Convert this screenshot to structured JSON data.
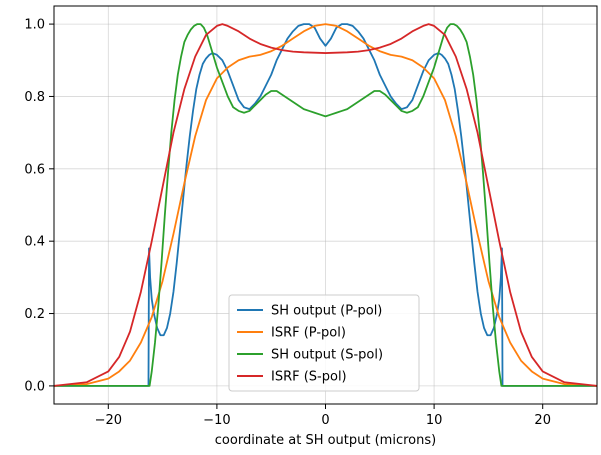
{
  "chart_data": {
    "type": "line",
    "title": "",
    "xlabel": "coordinate at SH output (microns)",
    "ylabel": "",
    "xlim": [
      -25,
      25
    ],
    "ylim": [
      -0.05,
      1.05
    ],
    "xticks": [
      -20,
      -10,
      0,
      10,
      20
    ],
    "yticks": [
      0.0,
      0.2,
      0.4,
      0.6,
      0.8,
      1.0
    ],
    "xtick_labels": [
      "−20",
      "−10",
      "0",
      "10",
      "20"
    ],
    "ytick_labels": [
      "0.0",
      "0.2",
      "0.4",
      "0.6",
      "0.8",
      "1.0"
    ],
    "grid": true,
    "legend_position": "lower-center",
    "series": [
      {
        "name": "SH output (P-pol)",
        "color": "#1f77b4",
        "x": [
          -25,
          -16.3,
          -16.25,
          -16.15,
          -16.0,
          -15.8,
          -15.5,
          -15.2,
          -14.9,
          -14.6,
          -14.3,
          -14.0,
          -13.7,
          -13.4,
          -13.1,
          -12.8,
          -12.5,
          -12.2,
          -11.9,
          -11.6,
          -11.3,
          -11.0,
          -10.7,
          -10.4,
          -10.0,
          -9.5,
          -9.0,
          -8.5,
          -8.0,
          -7.5,
          -7.0,
          -6.5,
          -6.0,
          -5.5,
          -5.0,
          -4.5,
          -4.0,
          -3.5,
          -3.0,
          -2.5,
          -2.0,
          -1.5,
          -1.0,
          -0.5,
          0.0,
          0.5,
          1.0,
          1.5,
          2.0,
          2.5,
          3.0,
          3.5,
          4.0,
          4.5,
          5.0,
          5.5,
          6.0,
          6.5,
          7.0,
          7.5,
          8.0,
          8.5,
          9.0,
          9.5,
          10.0,
          10.4,
          10.7,
          11.0,
          11.3,
          11.6,
          11.9,
          12.2,
          12.5,
          12.8,
          13.1,
          13.4,
          13.7,
          14.0,
          14.3,
          14.6,
          14.9,
          15.2,
          15.5,
          15.8,
          16.0,
          16.15,
          16.25,
          16.3,
          25
        ],
        "y": [
          0.0,
          0.0,
          0.38,
          0.3,
          0.24,
          0.2,
          0.16,
          0.14,
          0.14,
          0.16,
          0.2,
          0.26,
          0.34,
          0.43,
          0.52,
          0.61,
          0.69,
          0.76,
          0.82,
          0.86,
          0.89,
          0.905,
          0.915,
          0.92,
          0.915,
          0.9,
          0.87,
          0.83,
          0.79,
          0.77,
          0.765,
          0.78,
          0.8,
          0.83,
          0.86,
          0.9,
          0.93,
          0.96,
          0.98,
          0.995,
          1.0,
          1.0,
          0.99,
          0.96,
          0.94,
          0.96,
          0.99,
          1.0,
          1.0,
          0.995,
          0.98,
          0.96,
          0.93,
          0.9,
          0.86,
          0.83,
          0.8,
          0.78,
          0.765,
          0.77,
          0.79,
          0.83,
          0.87,
          0.9,
          0.915,
          0.92,
          0.915,
          0.905,
          0.89,
          0.86,
          0.82,
          0.76,
          0.69,
          0.61,
          0.52,
          0.43,
          0.34,
          0.26,
          0.2,
          0.16,
          0.14,
          0.14,
          0.16,
          0.2,
          0.24,
          0.3,
          0.38,
          0.0,
          0.0
        ]
      },
      {
        "name": "ISRF (P-pol)",
        "color": "#ff7f0e",
        "x": [
          -25,
          -22,
          -20,
          -19,
          -18,
          -17,
          -16,
          -15,
          -14,
          -13,
          -12,
          -11,
          -10,
          -9,
          -8,
          -7,
          -6,
          -5,
          -4,
          -3,
          -2,
          -1,
          0,
          1,
          2,
          3,
          4,
          5,
          6,
          7,
          8,
          9,
          10,
          11,
          12,
          13,
          14,
          15,
          16,
          17,
          18,
          19,
          20,
          22,
          25
        ],
        "y": [
          0.0,
          0.005,
          0.02,
          0.04,
          0.07,
          0.12,
          0.19,
          0.29,
          0.42,
          0.56,
          0.69,
          0.79,
          0.85,
          0.88,
          0.9,
          0.91,
          0.915,
          0.925,
          0.94,
          0.96,
          0.98,
          0.995,
          1.0,
          0.995,
          0.98,
          0.96,
          0.94,
          0.925,
          0.915,
          0.91,
          0.9,
          0.88,
          0.85,
          0.79,
          0.69,
          0.56,
          0.42,
          0.29,
          0.19,
          0.12,
          0.07,
          0.04,
          0.02,
          0.005,
          0.0
        ]
      },
      {
        "name": "SH output (S-pol)",
        "color": "#2ca02c",
        "x": [
          -25,
          -16.2,
          -16.0,
          -15.7,
          -15.4,
          -15.1,
          -14.8,
          -14.5,
          -14.2,
          -13.9,
          -13.6,
          -13.3,
          -13.0,
          -12.7,
          -12.4,
          -12.1,
          -11.8,
          -11.5,
          -11.2,
          -10.9,
          -10.6,
          -10.3,
          -10.0,
          -9.5,
          -9.0,
          -8.5,
          -8.0,
          -7.5,
          -7.0,
          -6.5,
          -6.0,
          -5.5,
          -5.0,
          -4.5,
          -4.0,
          -3.5,
          -3.0,
          -2.5,
          -2.0,
          -1.5,
          -1.0,
          -0.5,
          0.0,
          0.5,
          1.0,
          1.5,
          2.0,
          2.5,
          3.0,
          3.5,
          4.0,
          4.5,
          5.0,
          5.5,
          6.0,
          6.5,
          7.0,
          7.5,
          8.0,
          8.5,
          9.0,
          9.5,
          10.0,
          10.3,
          10.6,
          10.9,
          11.2,
          11.5,
          11.8,
          12.1,
          12.4,
          12.7,
          13.0,
          13.3,
          13.6,
          13.9,
          14.2,
          14.5,
          14.8,
          15.1,
          15.4,
          15.7,
          16.0,
          16.2,
          25
        ],
        "y": [
          0.0,
          0.0,
          0.04,
          0.12,
          0.22,
          0.34,
          0.47,
          0.59,
          0.7,
          0.79,
          0.86,
          0.91,
          0.95,
          0.97,
          0.985,
          0.995,
          1.0,
          1.0,
          0.99,
          0.97,
          0.94,
          0.91,
          0.88,
          0.84,
          0.8,
          0.77,
          0.76,
          0.755,
          0.76,
          0.775,
          0.79,
          0.805,
          0.815,
          0.815,
          0.805,
          0.795,
          0.785,
          0.775,
          0.765,
          0.76,
          0.755,
          0.75,
          0.745,
          0.75,
          0.755,
          0.76,
          0.765,
          0.775,
          0.785,
          0.795,
          0.805,
          0.815,
          0.815,
          0.805,
          0.79,
          0.775,
          0.76,
          0.755,
          0.76,
          0.77,
          0.8,
          0.84,
          0.88,
          0.91,
          0.94,
          0.97,
          0.99,
          1.0,
          1.0,
          0.995,
          0.985,
          0.97,
          0.95,
          0.91,
          0.86,
          0.79,
          0.7,
          0.59,
          0.47,
          0.34,
          0.22,
          0.12,
          0.04,
          0.0,
          0.0
        ]
      },
      {
        "name": "ISRF (S-pol)",
        "color": "#d62728",
        "x": [
          -25,
          -22,
          -20,
          -19,
          -18,
          -17,
          -16,
          -15,
          -14,
          -13,
          -12,
          -11,
          -10,
          -9.5,
          -9,
          -8,
          -7,
          -6,
          -5,
          -4,
          -3,
          -2,
          -1,
          0,
          1,
          2,
          3,
          4,
          5,
          6,
          7,
          8,
          9,
          9.5,
          10,
          11,
          12,
          13,
          14,
          15,
          16,
          17,
          18,
          19,
          20,
          22,
          25
        ],
        "y": [
          0.0,
          0.01,
          0.04,
          0.08,
          0.15,
          0.26,
          0.4,
          0.55,
          0.7,
          0.82,
          0.91,
          0.97,
          0.995,
          1.0,
          0.995,
          0.98,
          0.96,
          0.945,
          0.935,
          0.928,
          0.924,
          0.922,
          0.921,
          0.92,
          0.921,
          0.922,
          0.924,
          0.928,
          0.935,
          0.945,
          0.96,
          0.98,
          0.995,
          1.0,
          0.995,
          0.97,
          0.91,
          0.82,
          0.7,
          0.55,
          0.4,
          0.26,
          0.15,
          0.08,
          0.04,
          0.01,
          0.0
        ]
      }
    ]
  }
}
